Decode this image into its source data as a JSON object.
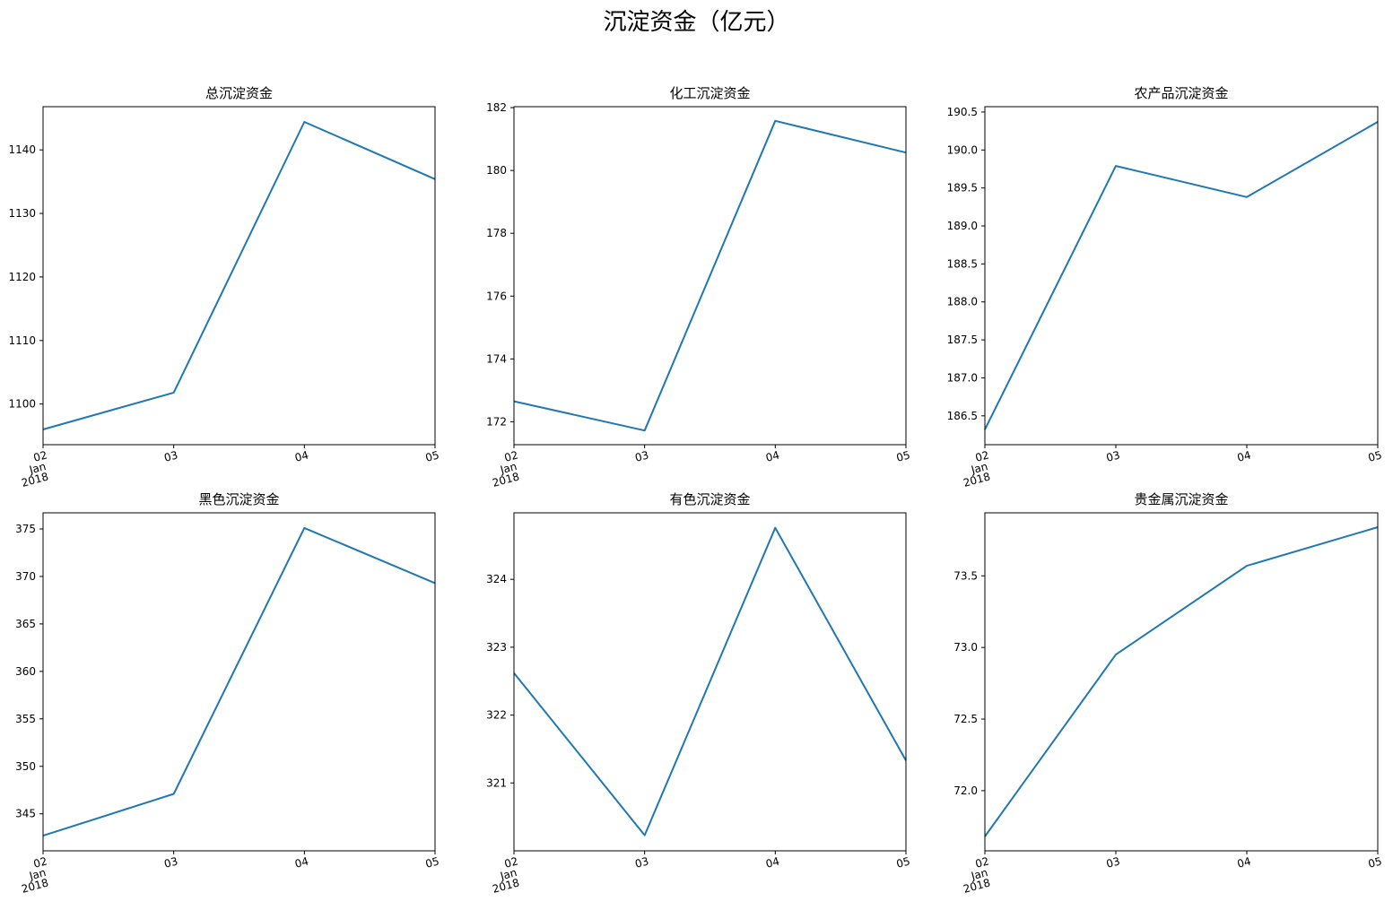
{
  "suptitle": "沉淀资金（亿元）",
  "line_color": "#1f77b4",
  "chart_data": [
    {
      "type": "line",
      "title": "总沉淀资金",
      "x": [
        "2018-01-02",
        "2018-01-03",
        "2018-01-04",
        "2018-01-05"
      ],
      "x_tick_labels": [
        [
          "02",
          "Jan",
          "2018"
        ],
        [
          "03"
        ],
        [
          "04"
        ],
        [
          "05"
        ]
      ],
      "values": [
        1096.0,
        1101.8,
        1144.4,
        1135.4
      ],
      "ylim": [
        1093.6,
        1146.8
      ],
      "yticks": [
        1100,
        1110,
        1120,
        1130,
        1140
      ],
      "ytick_labels": [
        "1100",
        "1110",
        "1120",
        "1130",
        "1140"
      ],
      "grid": false
    },
    {
      "type": "line",
      "title": "化工沉淀资金",
      "x": [
        "2018-01-02",
        "2018-01-03",
        "2018-01-04",
        "2018-01-05"
      ],
      "x_tick_labels": [
        [
          "02",
          "Jan",
          "2018"
        ],
        [
          "03"
        ],
        [
          "04"
        ],
        [
          "05"
        ]
      ],
      "values": [
        172.65,
        171.72,
        181.58,
        180.57
      ],
      "ylim": [
        171.27,
        182.03
      ],
      "yticks": [
        172,
        174,
        176,
        178,
        180,
        182
      ],
      "ytick_labels": [
        "172",
        "174",
        "176",
        "178",
        "180",
        "182"
      ],
      "grid": false
    },
    {
      "type": "line",
      "title": "农产品沉淀资金",
      "x": [
        "2018-01-02",
        "2018-01-03",
        "2018-01-04",
        "2018-01-05"
      ],
      "x_tick_labels": [
        [
          "02",
          "Jan",
          "2018"
        ],
        [
          "03"
        ],
        [
          "04"
        ],
        [
          "05"
        ]
      ],
      "values": [
        186.32,
        189.79,
        189.38,
        190.37
      ],
      "ylim": [
        186.12,
        190.57
      ],
      "yticks": [
        186.5,
        187.0,
        187.5,
        188.0,
        188.5,
        189.0,
        189.5,
        190.0,
        190.5
      ],
      "ytick_labels": [
        "186.5",
        "187.0",
        "187.5",
        "188.0",
        "188.5",
        "189.0",
        "189.5",
        "190.0",
        "190.5"
      ],
      "grid": false
    },
    {
      "type": "line",
      "title": "黑色沉淀资金",
      "x": [
        "2018-01-02",
        "2018-01-03",
        "2018-01-04",
        "2018-01-05"
      ],
      "x_tick_labels": [
        [
          "02",
          "Jan",
          "2018"
        ],
        [
          "03"
        ],
        [
          "04"
        ],
        [
          "05"
        ]
      ],
      "values": [
        342.7,
        347.1,
        375.1,
        369.3
      ],
      "ylim": [
        341.1,
        376.7
      ],
      "yticks": [
        345,
        350,
        355,
        360,
        365,
        370,
        375
      ],
      "ytick_labels": [
        "345",
        "350",
        "355",
        "360",
        "365",
        "370",
        "375"
      ],
      "grid": false
    },
    {
      "type": "line",
      "title": "有色沉淀资金",
      "x": [
        "2018-01-02",
        "2018-01-03",
        "2018-01-04",
        "2018-01-05"
      ],
      "x_tick_labels": [
        [
          "02",
          "Jan",
          "2018"
        ],
        [
          "03"
        ],
        [
          "04"
        ],
        [
          "05"
        ]
      ],
      "values": [
        322.62,
        320.23,
        324.76,
        321.33
      ],
      "ylim": [
        320.0,
        324.98
      ],
      "yticks": [
        321,
        322,
        323,
        324
      ],
      "ytick_labels": [
        "321",
        "322",
        "323",
        "324"
      ],
      "grid": false
    },
    {
      "type": "line",
      "title": "贵金属沉淀资金",
      "x": [
        "2018-01-02",
        "2018-01-03",
        "2018-01-04",
        "2018-01-05"
      ],
      "x_tick_labels": [
        [
          "02",
          "Jan",
          "2018"
        ],
        [
          "03"
        ],
        [
          "04"
        ],
        [
          "05"
        ]
      ],
      "values": [
        71.68,
        72.95,
        73.57,
        73.84
      ],
      "ylim": [
        71.58,
        73.94
      ],
      "yticks": [
        72.0,
        72.5,
        73.0,
        73.5
      ],
      "ytick_labels": [
        "72.0",
        "72.5",
        "73.0",
        "73.5"
      ],
      "grid": false
    }
  ]
}
